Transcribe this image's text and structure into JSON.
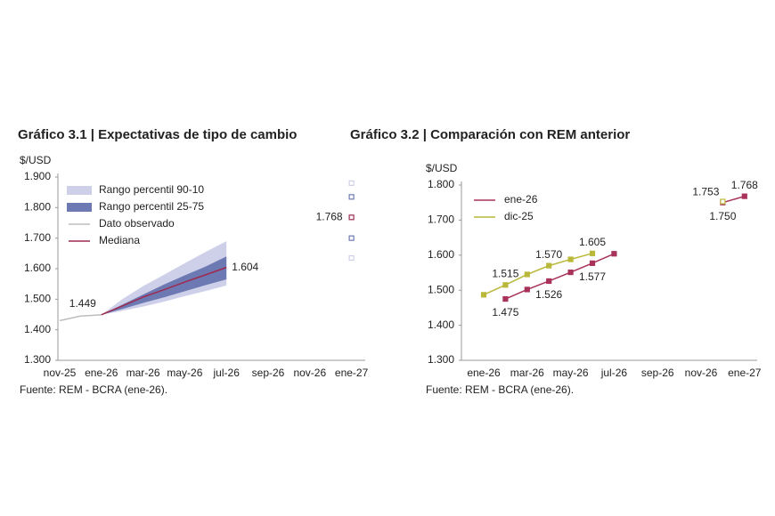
{
  "chart_data": [
    {
      "type": "line",
      "title": "Gráfico 3.1 | Expectativas de tipo de cambio",
      "y_label": "$/USD",
      "source": "Fuente: REM - BCRA (ene-26).",
      "categories": [
        "nov-25",
        null,
        "ene-26",
        null,
        "mar-26",
        null,
        "may-26",
        null,
        "jul-26",
        null,
        "sep-26",
        null,
        "nov-26",
        null,
        "ene-27"
      ],
      "ylim": [
        1300,
        1900
      ],
      "yticks": [
        {
          "value": 1300,
          "label": "1.300"
        },
        {
          "value": 1400,
          "label": "1.400"
        },
        {
          "value": 1500,
          "label": "1.500"
        },
        {
          "value": 1600,
          "label": "1.600"
        },
        {
          "value": 1700,
          "label": "1.700"
        },
        {
          "value": 1800,
          "label": "1.800"
        },
        {
          "value": 1900,
          "label": "1.900"
        }
      ],
      "grid": false,
      "legend": "upper left",
      "markers": false,
      "series": [
        {
          "name": "Rango percentil 90-10",
          "type": "area",
          "color": "#cdd0e8",
          "low": [
            null,
            null,
            1449,
            1462,
            1476,
            1492,
            1510,
            1527,
            1545,
            null,
            null,
            null,
            null,
            null,
            1635
          ],
          "high": [
            null,
            null,
            1449,
            1500,
            1543,
            1580,
            1618,
            1655,
            1690,
            null,
            null,
            null,
            null,
            null,
            1880
          ]
        },
        {
          "name": "Rango percentil 25-75",
          "type": "area",
          "color": "#6d79b2",
          "low": [
            null,
            null,
            1449,
            1468,
            1488,
            1506,
            1526,
            1546,
            1565,
            null,
            null,
            null,
            null,
            null,
            1700
          ],
          "high": [
            null,
            null,
            1449,
            1482,
            1515,
            1548,
            1578,
            1607,
            1640,
            null,
            null,
            null,
            null,
            null,
            1835
          ]
        },
        {
          "name": "Dato observado",
          "type": "line",
          "color": "#bdbdbd",
          "values": [
            1430,
            1445,
            1449,
            null,
            null,
            null,
            null,
            null,
            null,
            null,
            null,
            null,
            null,
            null,
            null
          ]
        },
        {
          "name": "Mediana",
          "type": "line",
          "color": "#9e2a4f",
          "values": [
            null,
            null,
            1449,
            1478,
            1507,
            1531,
            1556,
            1580,
            1604,
            null,
            null,
            null,
            null,
            null,
            1768
          ],
          "value_labels": [
            null,
            null,
            "1.449",
            null,
            null,
            null,
            null,
            null,
            "1.604",
            null,
            null,
            null,
            null,
            null,
            "1.768"
          ]
        }
      ]
    },
    {
      "type": "line",
      "title": "Gráfico 3.2 | Comparación con REM anterior",
      "y_label": "$/USD",
      "source": "Fuente: REM - BCRA (ene-26).",
      "categories": [
        "ene-26",
        null,
        "mar-26",
        null,
        "may-26",
        null,
        "jul-26",
        null,
        "sep-26",
        null,
        "nov-26",
        null,
        "ene-27"
      ],
      "ylim": [
        1300,
        1800
      ],
      "yticks": [
        {
          "value": 1300,
          "label": "1.300"
        },
        {
          "value": 1400,
          "label": "1.400"
        },
        {
          "value": 1500,
          "label": "1.500"
        },
        {
          "value": 1600,
          "label": "1.600"
        },
        {
          "value": 1700,
          "label": "1.700"
        },
        {
          "value": 1800,
          "label": "1.800"
        }
      ],
      "grid": false,
      "legend": "upper left",
      "markers": true,
      "series": [
        {
          "name": "ene-26",
          "type": "line",
          "color": "#a8325a",
          "values": [
            null,
            1475,
            1502,
            1526,
            1551,
            1577,
            1604,
            null,
            null,
            null,
            null,
            1750,
            1768
          ],
          "value_labels": [
            null,
            "1.475",
            null,
            "1.526",
            null,
            "1.577",
            null,
            null,
            null,
            null,
            null,
            "1.750",
            "1.768"
          ]
        },
        {
          "name": "dic-25",
          "type": "line",
          "color": "#b9b83a",
          "values": [
            1487,
            1515,
            1545,
            1570,
            1588,
            1605,
            null,
            null,
            null,
            null,
            null,
            1753,
            null
          ],
          "value_labels": [
            null,
            "1.515",
            null,
            "1.570",
            null,
            "1.605",
            null,
            null,
            null,
            null,
            null,
            "1.753",
            null
          ]
        }
      ]
    }
  ]
}
